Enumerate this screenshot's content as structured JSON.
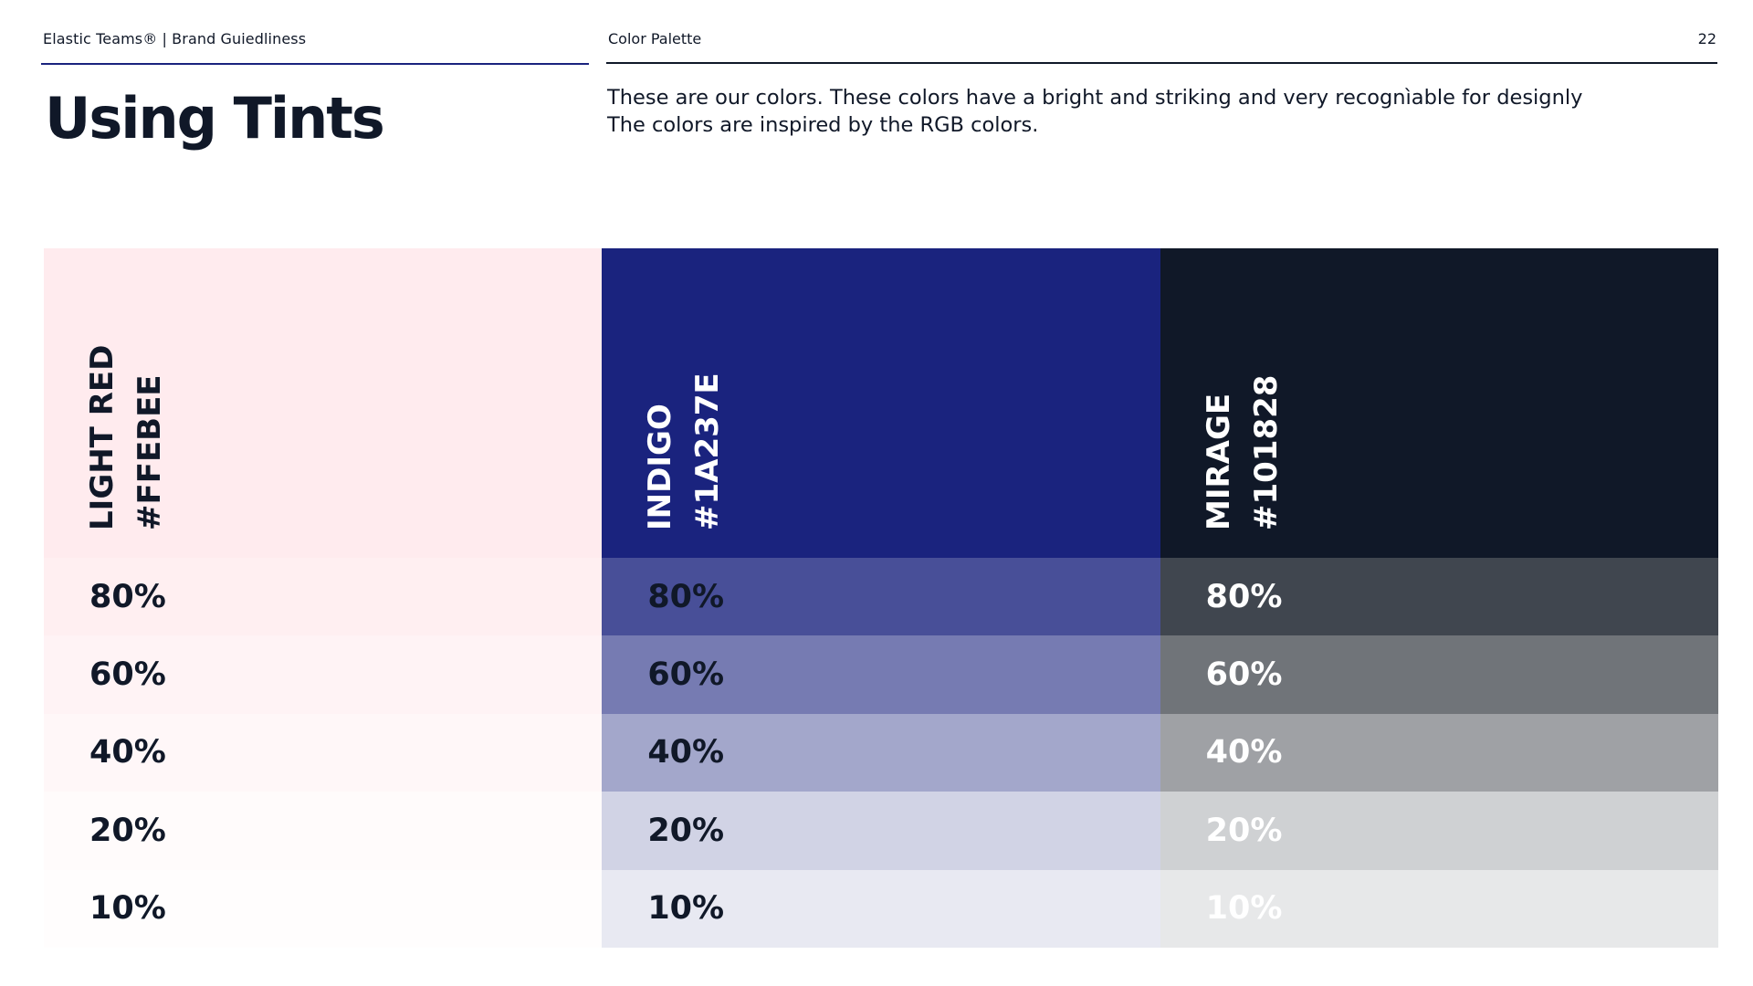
{
  "header": {
    "brand": "Elastic Teams® | Brand Guiedliness",
    "section": "Color Palette",
    "page_number": "22"
  },
  "title": "Using Tints",
  "description": {
    "line1": "These are our colors. These colors have a bright and striking and very recognìable for designly",
    "line2": "The colors are inspired by the RGB colors."
  },
  "colors": [
    {
      "name": "LIGHT RED",
      "hex": "#FFEBEE",
      "base": "#FFEBEE",
      "label_color": "#101828",
      "tints": [
        {
          "label": "80%",
          "bg": "#FFEFF1",
          "text": "#101828"
        },
        {
          "label": "60%",
          "bg": "#FFF3F5",
          "text": "#101828"
        },
        {
          "label": "40%",
          "bg": "#FFF7F8",
          "text": "#101828"
        },
        {
          "label": "20%",
          "bg": "#FFFBFB",
          "text": "#101828"
        },
        {
          "label": "10%",
          "bg": "#FFFDFD",
          "text": "#101828"
        }
      ]
    },
    {
      "name": "INDIGO",
      "hex": "#1A237E",
      "base": "#1A237E",
      "label_color": "#FFFFFF",
      "tints": [
        {
          "label": "80%",
          "bg": "#484F98",
          "text": "#101828"
        },
        {
          "label": "60%",
          "bg": "#767BB2",
          "text": "#101828"
        },
        {
          "label": "40%",
          "bg": "#A3A7CB",
          "text": "#101828"
        },
        {
          "label": "20%",
          "bg": "#D1D3E5",
          "text": "#101828"
        },
        {
          "label": "10%",
          "bg": "#E8E9F2",
          "text": "#101828"
        }
      ]
    },
    {
      "name": "MIRAGE",
      "hex": "#101828",
      "base": "#101828",
      "label_color": "#FFFFFF",
      "tints": [
        {
          "label": "80%",
          "bg": "#40464F",
          "text": "#FFFFFF"
        },
        {
          "label": "60%",
          "bg": "#707479",
          "text": "#FFFFFF"
        },
        {
          "label": "40%",
          "bg": "#9FA1A5",
          "text": "#FFFFFF"
        },
        {
          "label": "20%",
          "bg": "#CFD1D3",
          "text": "#FFFFFF"
        },
        {
          "label": "10%",
          "bg": "#E7E8E9",
          "text": "#FFFFFF"
        }
      ]
    }
  ]
}
